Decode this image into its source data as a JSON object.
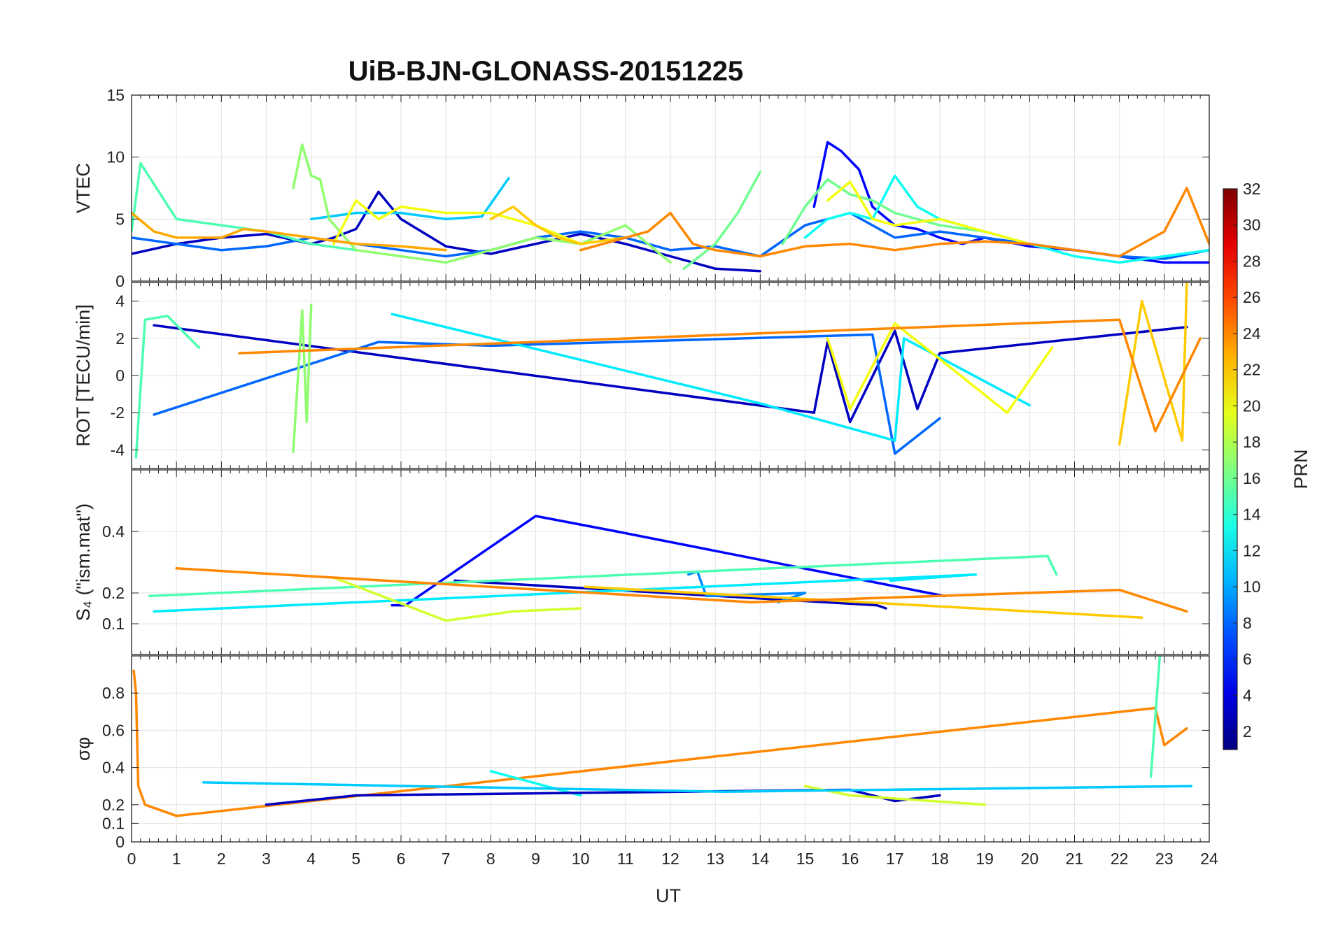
{
  "chart_data": {
    "type": "line",
    "title": "UiB-BJN-GLONASS-20151225",
    "xlabel": "UT",
    "xlim": [
      0,
      24
    ],
    "xticks": [
      "0",
      "1",
      "2",
      "3",
      "4",
      "5",
      "6",
      "7",
      "8",
      "9",
      "10",
      "11",
      "12",
      "13",
      "14",
      "15",
      "16",
      "17",
      "18",
      "19",
      "20",
      "21",
      "22",
      "23",
      "24"
    ],
    "grid": true,
    "colorbar": {
      "label": "PRN",
      "range": [
        1,
        32
      ],
      "ticks": [
        "2",
        "4",
        "6",
        "8",
        "10",
        "12",
        "14",
        "16",
        "18",
        "20",
        "22",
        "24",
        "26",
        "28",
        "30",
        "32"
      ],
      "colormap": "jet"
    },
    "panels": [
      {
        "id": "vtec",
        "ylabel": "VTEC",
        "ylim": [
          0,
          15
        ],
        "yticks": [
          "0",
          "5",
          "10",
          "15"
        ],
        "series": [
          {
            "prn": 3,
            "x": [
              0,
              1,
              2,
              3,
              4,
              4.5,
              5,
              5.5,
              6,
              7,
              8,
              9,
              10,
              11,
              12,
              13,
              14
            ],
            "y": [
              2.2,
              3.0,
              3.5,
              3.8,
              3.0,
              3.5,
              4.2,
              7.2,
              5.0,
              2.8,
              2.2,
              3.0,
              3.8,
              3.0,
              2.0,
              1.0,
              0.8
            ]
          },
          {
            "prn": 5,
            "x": [
              15.2,
              15.5,
              15.8,
              16.2,
              16.5,
              17,
              17.5,
              18,
              18.5,
              19,
              20,
              21,
              22,
              23,
              24
            ],
            "y": [
              6.0,
              11.2,
              10.5,
              9.0,
              6.0,
              4.5,
              4.2,
              3.5,
              3.0,
              3.5,
              2.8,
              2.5,
              2.0,
              1.5,
              1.5
            ]
          },
          {
            "prn": 8,
            "x": [
              0,
              1,
              2,
              3,
              4,
              5,
              6,
              7,
              8,
              9,
              10,
              11,
              12,
              13,
              14,
              15,
              16,
              17,
              18,
              19,
              20,
              21,
              22,
              23,
              24
            ],
            "y": [
              3.5,
              3.0,
              2.5,
              2.8,
              3.5,
              3.0,
              2.5,
              2.0,
              2.5,
              3.5,
              4.0,
              3.5,
              2.5,
              2.8,
              2.0,
              4.5,
              5.5,
              3.5,
              4.0,
              3.5,
              3.0,
              2.5,
              2.0,
              1.8,
              2.5
            ]
          },
          {
            "prn": 11,
            "x": [
              4,
              5,
              6,
              7,
              7.8,
              8.4
            ],
            "y": [
              5.0,
              5.5,
              5.5,
              5.0,
              5.2,
              8.3
            ]
          },
          {
            "prn": 13,
            "x": [
              15,
              15.5,
              16,
              16.5,
              17,
              17.5,
              18,
              19,
              20,
              21,
              22,
              23,
              24
            ],
            "y": [
              3.5,
              5.0,
              5.5,
              5.0,
              8.5,
              6.0,
              5.0,
              4.0,
              3.0,
              2.0,
              1.5,
              2.0,
              2.5
            ]
          },
          {
            "prn": 15,
            "x": [
              0,
              0.2,
              1,
              2,
              3,
              4,
              5
            ],
            "y": [
              4.0,
              9.5,
              5.0,
              4.5,
              4.0,
              3.0,
              2.5
            ]
          },
          {
            "prn": 16,
            "x": [
              12.3,
              13,
              13.5,
              14
            ],
            "y": [
              1.0,
              3.0,
              5.5,
              8.8
            ]
          },
          {
            "prn": 16,
            "x": [
              14.5,
              15,
              15.5,
              16,
              16.5,
              17,
              18,
              19,
              20
            ],
            "y": [
              3.0,
              6.0,
              8.2,
              7.0,
              6.5,
              5.5,
              4.5,
              4.0,
              3.0
            ]
          },
          {
            "prn": 17,
            "x": [
              3.6,
              3.8,
              4,
              4.2,
              4.4,
              5,
              6,
              7,
              8,
              9,
              10,
              11,
              12
            ],
            "y": [
              7.5,
              11.0,
              8.5,
              8.2,
              5.0,
              2.5,
              2.0,
              1.5,
              2.5,
              3.5,
              3.0,
              4.5,
              1.5
            ]
          },
          {
            "prn": 20,
            "x": [
              4.5,
              5,
              5.5,
              6,
              7,
              8,
              9,
              10,
              11
            ],
            "y": [
              3.0,
              6.5,
              5.0,
              6.0,
              5.5,
              5.5,
              4.5,
              3.0,
              3.5
            ]
          },
          {
            "prn": 20,
            "x": [
              15.5,
              16,
              16.5,
              17,
              18,
              19,
              20
            ],
            "y": [
              6.5,
              8.0,
              5.0,
              4.5,
              5.0,
              4.0,
              3.0
            ]
          },
          {
            "prn": 22,
            "x": [
              8,
              8.5,
              9,
              9.5,
              10,
              11
            ],
            "y": [
              5.0,
              6.0,
              4.5,
              3.5,
              3.0,
              3.5
            ]
          },
          {
            "prn": 23,
            "x": [
              0,
              0.5,
              1,
              2,
              2.5,
              3,
              4,
              5,
              6,
              7
            ],
            "y": [
              5.5,
              4.0,
              3.5,
              3.5,
              4.2,
              4.0,
              3.5,
              3.0,
              2.8,
              2.5
            ]
          },
          {
            "prn": 24,
            "x": [
              10,
              11,
              11.5,
              12,
              12.5,
              13,
              14,
              15,
              16,
              17,
              18,
              19,
              20,
              21,
              22,
              23,
              23.5,
              24
            ],
            "y": [
              2.5,
              3.5,
              4.0,
              5.5,
              3.0,
              2.5,
              2.0,
              2.8,
              3.0,
              2.5,
              3.0,
              3.2,
              3.0,
              2.5,
              2.0,
              4.0,
              7.5,
              3.0
            ]
          }
        ]
      },
      {
        "id": "rot",
        "ylabel": "ROT [TECU/min]",
        "ylim": [
          -5,
          5
        ],
        "yticks": [
          "-4",
          "-2",
          "0",
          "2",
          "4"
        ],
        "series": [
          {
            "prn": 3,
            "x": [
              0.5,
              15.2,
              15.5,
              16,
              17,
              17.5,
              18,
              23.5
            ],
            "y": [
              2.7,
              -2.0,
              1.8,
              -2.5,
              2.4,
              -1.8,
              1.2,
              2.6
            ]
          },
          {
            "prn": 8,
            "x": [
              0.5,
              5.5,
              8,
              16.5,
              17,
              18
            ],
            "y": [
              -2.1,
              1.8,
              1.6,
              2.2,
              -4.2,
              -2.3
            ]
          },
          {
            "prn": 12,
            "x": [
              5.8,
              14,
              17,
              17.2,
              20
            ],
            "y": [
              3.3,
              -1.5,
              -3.5,
              2.0,
              -1.6
            ]
          },
          {
            "prn": 15,
            "x": [
              0.1,
              0.3,
              0.8,
              1.5
            ],
            "y": [
              -4.4,
              3.0,
              3.2,
              1.5
            ]
          },
          {
            "prn": 17,
            "x": [
              3.6,
              3.8,
              3.9,
              4.0
            ],
            "y": [
              -4.1,
              3.5,
              -2.5,
              3.8
            ]
          },
          {
            "prn": 20,
            "x": [
              15.5,
              16,
              17,
              19.5,
              20.5
            ],
            "y": [
              2.0,
              -1.8,
              2.8,
              -2.0,
              1.5
            ]
          },
          {
            "prn": 22,
            "x": [
              22,
              22.5,
              23.4,
              23.5
            ],
            "y": [
              -3.7,
              4.0,
              -3.5,
              5.0
            ]
          },
          {
            "prn": 24,
            "x": [
              2.4,
              22,
              22.8,
              23.8
            ],
            "y": [
              1.2,
              3.0,
              -3.0,
              2.0
            ]
          }
        ]
      },
      {
        "id": "s4",
        "ylabel": "S₄ (\"ism.mat\")",
        "ylim": [
          0,
          0.6
        ],
        "yticks": [
          "0.1",
          "0.2",
          "0.4"
        ],
        "series": [
          {
            "prn": 5,
            "x": [
              5.8,
              6.1,
              9.0,
              10.8,
              18.1
            ],
            "y": [
              0.16,
              0.16,
              0.45,
              0.4,
              0.19
            ]
          },
          {
            "prn": 3,
            "x": [
              7.2,
              16.6,
              16.8
            ],
            "y": [
              0.24,
              0.16,
              0.15
            ]
          },
          {
            "prn": 9,
            "x": [
              12.4,
              12.6,
              12.8,
              15.0,
              14.4
            ],
            "y": [
              0.26,
              0.27,
              0.19,
              0.2,
              0.17
            ]
          },
          {
            "prn": 12,
            "x": [
              16.9,
              18.8,
              0.5
            ],
            "y": [
              0.24,
              0.26,
              0.14
            ]
          },
          {
            "prn": 15,
            "x": [
              0.4,
              20.4,
              20.6
            ],
            "y": [
              0.19,
              0.32,
              0.26
            ]
          },
          {
            "prn": 19,
            "x": [
              4.5,
              7.0,
              8.5,
              10.0
            ],
            "y": [
              0.25,
              0.11,
              0.14,
              0.15
            ]
          },
          {
            "prn": 22,
            "x": [
              10.1,
              22.5
            ],
            "y": [
              0.22,
              0.12
            ]
          },
          {
            "prn": 24,
            "x": [
              1.0,
              13.8,
              22.0,
              23.5
            ],
            "y": [
              0.28,
              0.17,
              0.21,
              0.14
            ]
          }
        ]
      },
      {
        "id": "sigma_phi",
        "ylabel": "σφ",
        "ylim": [
          0,
          1
        ],
        "yticks": [
          "0",
          "0.1",
          "0.2",
          "0.4",
          "0.6",
          "0.8"
        ],
        "series": [
          {
            "prn": 24,
            "x": [
              0.05,
              0.1,
              0.15,
              0.3,
              1,
              22.8,
              23.0,
              23.5
            ],
            "y": [
              0.92,
              0.8,
              0.3,
              0.2,
              0.14,
              0.72,
              0.52,
              0.61
            ]
          },
          {
            "prn": 15,
            "x": [
              22.7,
              22.9
            ],
            "y": [
              0.35,
              1.0
            ]
          },
          {
            "prn": 13,
            "x": [
              8.0,
              10.0
            ],
            "y": [
              0.38,
              0.25
            ]
          },
          {
            "prn": 3,
            "x": [
              3,
              5,
              16,
              17,
              18
            ],
            "y": [
              0.2,
              0.25,
              0.28,
              0.22,
              0.25
            ]
          },
          {
            "prn": 19,
            "x": [
              15,
              16,
              19
            ],
            "y": [
              0.3,
              0.25,
              0.2
            ]
          },
          {
            "prn": 11,
            "x": [
              1.6,
              13.2,
              23.6
            ],
            "y": [
              0.32,
              0.27,
              0.3
            ]
          }
        ]
      }
    ]
  }
}
